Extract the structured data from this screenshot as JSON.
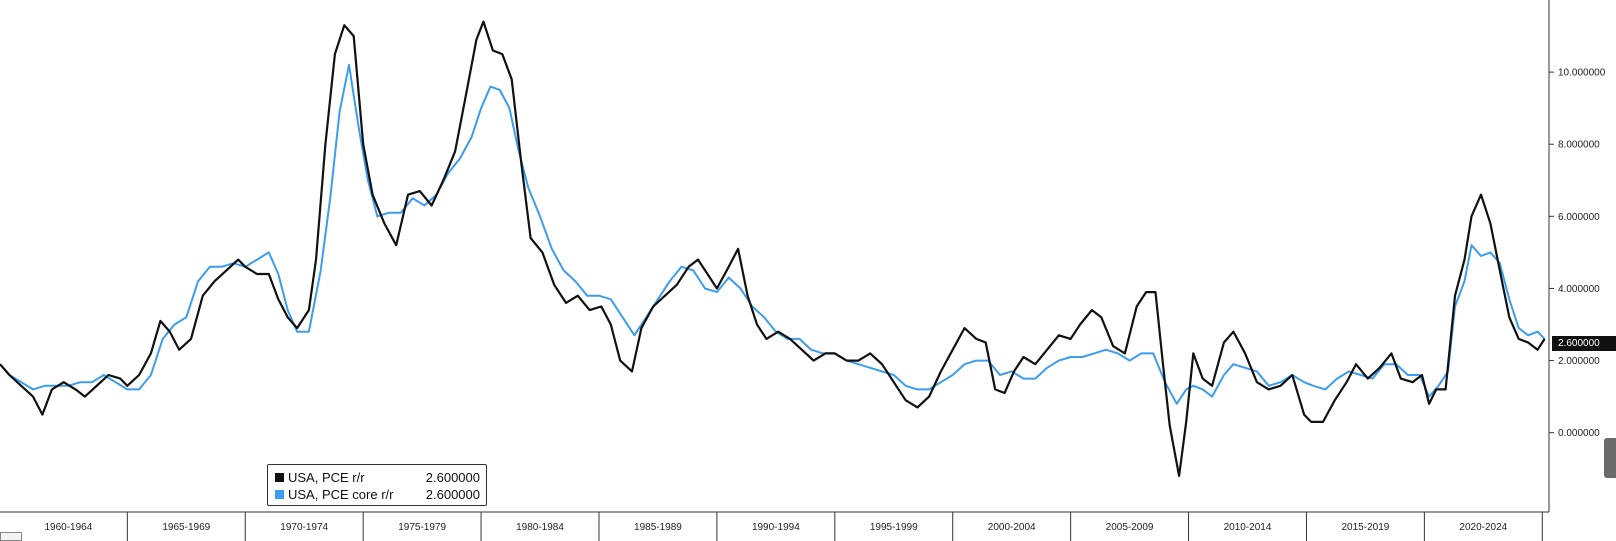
{
  "chart_data": {
    "type": "line",
    "title": "",
    "xlabel": "",
    "ylabel": "",
    "x_range": [
      1959.6,
      2025.2
    ],
    "ylim": [
      -2.2,
      12.0
    ],
    "y_ticks": [
      {
        "value": 0,
        "label": "0.000000"
      },
      {
        "value": 2,
        "label": "2.000000"
      },
      {
        "value": 4,
        "label": "4.000000"
      },
      {
        "value": 6,
        "label": "6.000000"
      },
      {
        "value": 8,
        "label": "8.000000"
      },
      {
        "value": 10,
        "label": "10.000000"
      }
    ],
    "x_period_labels": [
      {
        "label": "1960-1964",
        "start": 1960,
        "end": 1965
      },
      {
        "label": "1965-1969",
        "start": 1965,
        "end": 1970
      },
      {
        "label": "1970-1974",
        "start": 1970,
        "end": 1975
      },
      {
        "label": "1975-1979",
        "start": 1975,
        "end": 1980
      },
      {
        "label": "1980-1984",
        "start": 1980,
        "end": 1985
      },
      {
        "label": "1985-1989",
        "start": 1985,
        "end": 1990
      },
      {
        "label": "1990-1994",
        "start": 1990,
        "end": 1995
      },
      {
        "label": "1995-1999",
        "start": 1995,
        "end": 2000
      },
      {
        "label": "2000-2004",
        "start": 2000,
        "end": 2005
      },
      {
        "label": "2005-2009",
        "start": 2005,
        "end": 2010
      },
      {
        "label": "2010-2014",
        "start": 2010,
        "end": 2015
      },
      {
        "label": "2015-2019",
        "start": 2015,
        "end": 2020
      },
      {
        "label": "2020-2024",
        "start": 2020,
        "end": 2025
      }
    ],
    "grid": false,
    "legend_position": "bottom-left",
    "last_value_label": "2.600000",
    "series": [
      {
        "name": "USA, PCE r/r",
        "value_label": "2.600000",
        "color": "#111111",
        "points": [
          [
            1959.6,
            1.9
          ],
          [
            1960.0,
            1.6
          ],
          [
            1960.5,
            1.3
          ],
          [
            1961.0,
            1.0
          ],
          [
            1961.4,
            0.5
          ],
          [
            1961.8,
            1.2
          ],
          [
            1962.3,
            1.4
          ],
          [
            1962.8,
            1.2
          ],
          [
            1963.2,
            1.0
          ],
          [
            1963.7,
            1.3
          ],
          [
            1964.2,
            1.6
          ],
          [
            1964.7,
            1.5
          ],
          [
            1965.0,
            1.3
          ],
          [
            1965.5,
            1.6
          ],
          [
            1966.0,
            2.2
          ],
          [
            1966.4,
            3.1
          ],
          [
            1966.8,
            2.8
          ],
          [
            1967.2,
            2.3
          ],
          [
            1967.7,
            2.6
          ],
          [
            1968.2,
            3.8
          ],
          [
            1968.7,
            4.2
          ],
          [
            1969.2,
            4.5
          ],
          [
            1969.7,
            4.8
          ],
          [
            1970.0,
            4.6
          ],
          [
            1970.5,
            4.4
          ],
          [
            1971.0,
            4.4
          ],
          [
            1971.4,
            3.7
          ],
          [
            1971.8,
            3.2
          ],
          [
            1972.2,
            2.9
          ],
          [
            1972.7,
            3.4
          ],
          [
            1973.0,
            4.8
          ],
          [
            1973.4,
            8.0
          ],
          [
            1973.8,
            10.5
          ],
          [
            1974.2,
            11.3
          ],
          [
            1974.6,
            11.0
          ],
          [
            1975.0,
            8.0
          ],
          [
            1975.4,
            6.6
          ],
          [
            1975.9,
            5.8
          ],
          [
            1976.4,
            5.2
          ],
          [
            1976.9,
            6.6
          ],
          [
            1977.4,
            6.7
          ],
          [
            1977.9,
            6.3
          ],
          [
            1978.4,
            7.0
          ],
          [
            1978.9,
            7.8
          ],
          [
            1979.4,
            9.5
          ],
          [
            1979.8,
            10.9
          ],
          [
            1980.1,
            11.4
          ],
          [
            1980.5,
            10.6
          ],
          [
            1980.9,
            10.5
          ],
          [
            1981.3,
            9.8
          ],
          [
            1981.7,
            7.5
          ],
          [
            1982.1,
            5.4
          ],
          [
            1982.6,
            5.0
          ],
          [
            1983.1,
            4.1
          ],
          [
            1983.6,
            3.6
          ],
          [
            1984.1,
            3.8
          ],
          [
            1984.6,
            3.4
          ],
          [
            1985.1,
            3.5
          ],
          [
            1985.5,
            3.0
          ],
          [
            1985.9,
            2.0
          ],
          [
            1986.4,
            1.7
          ],
          [
            1986.8,
            2.9
          ],
          [
            1987.3,
            3.5
          ],
          [
            1987.8,
            3.8
          ],
          [
            1988.3,
            4.1
          ],
          [
            1988.8,
            4.6
          ],
          [
            1989.2,
            4.8
          ],
          [
            1989.6,
            4.4
          ],
          [
            1990.0,
            4.0
          ],
          [
            1990.5,
            4.6
          ],
          [
            1990.9,
            5.1
          ],
          [
            1991.3,
            3.8
          ],
          [
            1991.7,
            3.0
          ],
          [
            1992.1,
            2.6
          ],
          [
            1992.6,
            2.8
          ],
          [
            1993.1,
            2.6
          ],
          [
            1993.6,
            2.3
          ],
          [
            1994.1,
            2.0
          ],
          [
            1994.6,
            2.2
          ],
          [
            1995.0,
            2.2
          ],
          [
            1995.5,
            2.0
          ],
          [
            1996.0,
            2.0
          ],
          [
            1996.5,
            2.2
          ],
          [
            1997.0,
            1.9
          ],
          [
            1997.5,
            1.4
          ],
          [
            1998.0,
            0.9
          ],
          [
            1998.5,
            0.7
          ],
          [
            1999.0,
            1.0
          ],
          [
            1999.5,
            1.7
          ],
          [
            2000.0,
            2.3
          ],
          [
            2000.5,
            2.9
          ],
          [
            2001.0,
            2.6
          ],
          [
            2001.4,
            2.5
          ],
          [
            2001.8,
            1.2
          ],
          [
            2002.2,
            1.1
          ],
          [
            2002.6,
            1.7
          ],
          [
            2003.0,
            2.1
          ],
          [
            2003.5,
            1.9
          ],
          [
            2004.0,
            2.3
          ],
          [
            2004.5,
            2.7
          ],
          [
            2005.0,
            2.6
          ],
          [
            2005.4,
            3.0
          ],
          [
            2005.9,
            3.4
          ],
          [
            2006.3,
            3.2
          ],
          [
            2006.8,
            2.4
          ],
          [
            2007.3,
            2.2
          ],
          [
            2007.8,
            3.5
          ],
          [
            2008.2,
            3.9
          ],
          [
            2008.6,
            3.9
          ],
          [
            2008.9,
            2.0
          ],
          [
            2009.2,
            0.2
          ],
          [
            2009.6,
            -1.2
          ],
          [
            2009.9,
            0.3
          ],
          [
            2010.2,
            2.2
          ],
          [
            2010.6,
            1.5
          ],
          [
            2011.0,
            1.3
          ],
          [
            2011.5,
            2.5
          ],
          [
            2011.9,
            2.8
          ],
          [
            2012.4,
            2.2
          ],
          [
            2012.9,
            1.4
          ],
          [
            2013.4,
            1.2
          ],
          [
            2013.9,
            1.3
          ],
          [
            2014.4,
            1.6
          ],
          [
            2014.9,
            0.5
          ],
          [
            2015.2,
            0.3
          ],
          [
            2015.7,
            0.3
          ],
          [
            2016.2,
            0.9
          ],
          [
            2016.7,
            1.4
          ],
          [
            2017.1,
            1.9
          ],
          [
            2017.6,
            1.5
          ],
          [
            2018.1,
            1.8
          ],
          [
            2018.6,
            2.2
          ],
          [
            2019.0,
            1.5
          ],
          [
            2019.5,
            1.4
          ],
          [
            2019.9,
            1.6
          ],
          [
            2020.2,
            0.8
          ],
          [
            2020.5,
            1.2
          ],
          [
            2020.9,
            1.2
          ],
          [
            2021.3,
            3.8
          ],
          [
            2021.7,
            4.8
          ],
          [
            2022.0,
            6.0
          ],
          [
            2022.4,
            6.6
          ],
          [
            2022.8,
            5.8
          ],
          [
            2023.2,
            4.5
          ],
          [
            2023.6,
            3.2
          ],
          [
            2024.0,
            2.6
          ],
          [
            2024.4,
            2.5
          ],
          [
            2024.8,
            2.3
          ],
          [
            2025.1,
            2.6
          ]
        ]
      },
      {
        "name": "USA, PCE core r/r",
        "value_label": "2.600000",
        "color": "#3b9df0",
        "points": [
          [
            1959.6,
            1.9
          ],
          [
            1960.0,
            1.6
          ],
          [
            1960.5,
            1.4
          ],
          [
            1961.0,
            1.2
          ],
          [
            1961.5,
            1.3
          ],
          [
            1962.0,
            1.3
          ],
          [
            1962.5,
            1.3
          ],
          [
            1963.0,
            1.4
          ],
          [
            1963.5,
            1.4
          ],
          [
            1964.0,
            1.6
          ],
          [
            1964.5,
            1.4
          ],
          [
            1965.0,
            1.2
          ],
          [
            1965.5,
            1.2
          ],
          [
            1966.0,
            1.6
          ],
          [
            1966.5,
            2.6
          ],
          [
            1967.0,
            3.0
          ],
          [
            1967.5,
            3.2
          ],
          [
            1968.0,
            4.2
          ],
          [
            1968.5,
            4.6
          ],
          [
            1969.0,
            4.6
          ],
          [
            1969.5,
            4.7
          ],
          [
            1970.0,
            4.6
          ],
          [
            1970.5,
            4.8
          ],
          [
            1971.0,
            5.0
          ],
          [
            1971.4,
            4.4
          ],
          [
            1971.8,
            3.4
          ],
          [
            1972.2,
            2.8
          ],
          [
            1972.7,
            2.8
          ],
          [
            1973.2,
            4.5
          ],
          [
            1973.6,
            6.5
          ],
          [
            1974.0,
            8.9
          ],
          [
            1974.4,
            10.2
          ],
          [
            1974.8,
            8.5
          ],
          [
            1975.2,
            7.0
          ],
          [
            1975.6,
            6.0
          ],
          [
            1976.1,
            6.1
          ],
          [
            1976.6,
            6.1
          ],
          [
            1977.1,
            6.5
          ],
          [
            1977.6,
            6.3
          ],
          [
            1978.1,
            6.6
          ],
          [
            1978.6,
            7.2
          ],
          [
            1979.1,
            7.6
          ],
          [
            1979.6,
            8.2
          ],
          [
            1980.0,
            9.0
          ],
          [
            1980.4,
            9.6
          ],
          [
            1980.8,
            9.5
          ],
          [
            1981.2,
            9.0
          ],
          [
            1981.6,
            7.8
          ],
          [
            1982.0,
            6.8
          ],
          [
            1982.5,
            6.0
          ],
          [
            1983.0,
            5.1
          ],
          [
            1983.5,
            4.5
          ],
          [
            1984.0,
            4.2
          ],
          [
            1984.5,
            3.8
          ],
          [
            1985.0,
            3.8
          ],
          [
            1985.5,
            3.7
          ],
          [
            1986.0,
            3.2
          ],
          [
            1986.5,
            2.7
          ],
          [
            1987.0,
            3.2
          ],
          [
            1987.5,
            3.7
          ],
          [
            1988.0,
            4.2
          ],
          [
            1988.5,
            4.6
          ],
          [
            1989.0,
            4.5
          ],
          [
            1989.5,
            4.0
          ],
          [
            1990.0,
            3.9
          ],
          [
            1990.5,
            4.3
          ],
          [
            1991.0,
            4.0
          ],
          [
            1991.5,
            3.5
          ],
          [
            1992.0,
            3.2
          ],
          [
            1992.5,
            2.8
          ],
          [
            1993.0,
            2.6
          ],
          [
            1993.5,
            2.6
          ],
          [
            1994.0,
            2.3
          ],
          [
            1994.5,
            2.2
          ],
          [
            1995.0,
            2.2
          ],
          [
            1995.5,
            2.0
          ],
          [
            1996.0,
            1.9
          ],
          [
            1996.5,
            1.8
          ],
          [
            1997.0,
            1.7
          ],
          [
            1997.5,
            1.6
          ],
          [
            1998.0,
            1.3
          ],
          [
            1998.5,
            1.2
          ],
          [
            1999.0,
            1.2
          ],
          [
            1999.5,
            1.4
          ],
          [
            2000.0,
            1.6
          ],
          [
            2000.5,
            1.9
          ],
          [
            2001.0,
            2.0
          ],
          [
            2001.5,
            2.0
          ],
          [
            2002.0,
            1.6
          ],
          [
            2002.5,
            1.7
          ],
          [
            2003.0,
            1.5
          ],
          [
            2003.5,
            1.5
          ],
          [
            2004.0,
            1.8
          ],
          [
            2004.5,
            2.0
          ],
          [
            2005.0,
            2.1
          ],
          [
            2005.5,
            2.1
          ],
          [
            2006.0,
            2.2
          ],
          [
            2006.5,
            2.3
          ],
          [
            2007.0,
            2.2
          ],
          [
            2007.5,
            2.0
          ],
          [
            2008.0,
            2.2
          ],
          [
            2008.5,
            2.2
          ],
          [
            2009.0,
            1.4
          ],
          [
            2009.5,
            0.8
          ],
          [
            2009.9,
            1.2
          ],
          [
            2010.2,
            1.3
          ],
          [
            2010.6,
            1.2
          ],
          [
            2011.0,
            1.0
          ],
          [
            2011.5,
            1.6
          ],
          [
            2011.9,
            1.9
          ],
          [
            2012.4,
            1.8
          ],
          [
            2012.9,
            1.7
          ],
          [
            2013.4,
            1.3
          ],
          [
            2013.9,
            1.4
          ],
          [
            2014.4,
            1.6
          ],
          [
            2014.9,
            1.4
          ],
          [
            2015.3,
            1.3
          ],
          [
            2015.8,
            1.2
          ],
          [
            2016.3,
            1.5
          ],
          [
            2016.8,
            1.7
          ],
          [
            2017.3,
            1.6
          ],
          [
            2017.8,
            1.5
          ],
          [
            2018.3,
            1.9
          ],
          [
            2018.8,
            1.9
          ],
          [
            2019.3,
            1.6
          ],
          [
            2019.8,
            1.6
          ],
          [
            2020.2,
            1.0
          ],
          [
            2020.6,
            1.3
          ],
          [
            2021.0,
            1.7
          ],
          [
            2021.3,
            3.5
          ],
          [
            2021.7,
            4.2
          ],
          [
            2022.0,
            5.2
          ],
          [
            2022.4,
            4.9
          ],
          [
            2022.8,
            5.0
          ],
          [
            2023.2,
            4.7
          ],
          [
            2023.6,
            3.7
          ],
          [
            2024.0,
            2.9
          ],
          [
            2024.4,
            2.7
          ],
          [
            2024.8,
            2.8
          ],
          [
            2025.1,
            2.6
          ]
        ]
      }
    ]
  }
}
